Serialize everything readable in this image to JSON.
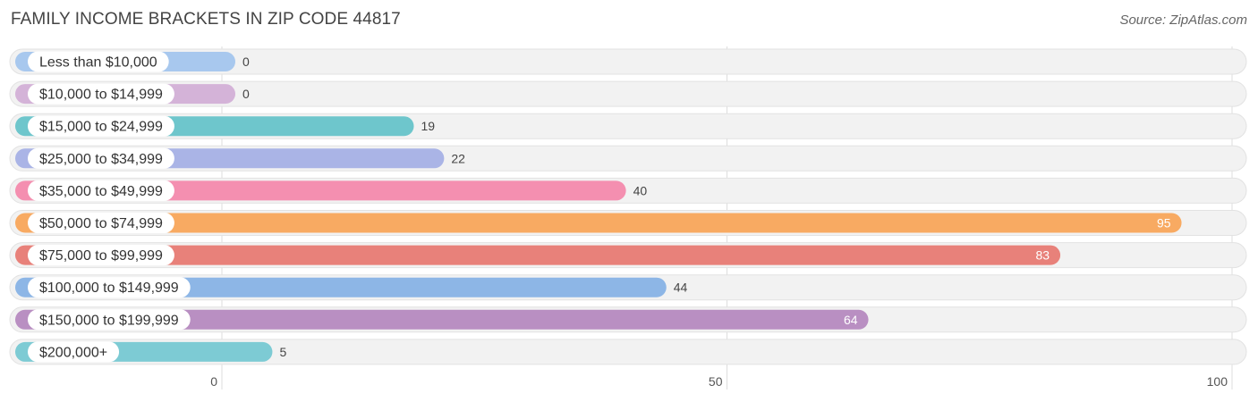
{
  "header": {
    "title": "FAMILY INCOME BRACKETS IN ZIP CODE 44817",
    "source": "Source: ZipAtlas.com"
  },
  "chart_data": {
    "type": "bar",
    "orientation": "horizontal",
    "title": "FAMILY INCOME BRACKETS IN ZIP CODE 44817",
    "xlabel": "",
    "ylabel": "",
    "xlim": [
      0,
      100
    ],
    "xticks": [
      0,
      50,
      100
    ],
    "grid": true,
    "categories": [
      "Less than $10,000",
      "$10,000 to $14,999",
      "$15,000 to $24,999",
      "$25,000 to $34,999",
      "$35,000 to $49,999",
      "$50,000 to $74,999",
      "$75,000 to $99,999",
      "$100,000 to $149,999",
      "$150,000 to $199,999",
      "$200,000+"
    ],
    "values": [
      0,
      0,
      19,
      22,
      40,
      95,
      83,
      44,
      64,
      5
    ],
    "colors": [
      "#a8c8ee",
      "#d4b3d8",
      "#6ec6cc",
      "#aab4e6",
      "#f48fb0",
      "#f8aa62",
      "#e8817a",
      "#8db6e6",
      "#b98fc2",
      "#7dcbd4"
    ]
  }
}
